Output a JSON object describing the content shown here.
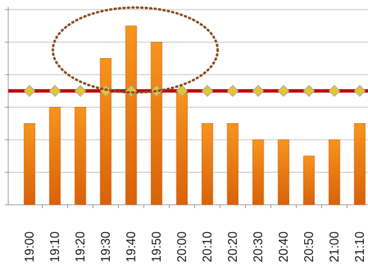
{
  "chart_data": {
    "type": "bar",
    "categories": [
      "19:00",
      "19:10",
      "19:20",
      "19:30",
      "19:40",
      "19:50",
      "20:00",
      "20:10",
      "20:20",
      "20:30",
      "20:40",
      "20:50",
      "21:00",
      "21:10"
    ],
    "series": [
      {
        "values": [
          5,
          6,
          6,
          9,
          11,
          10,
          7,
          5,
          5,
          4,
          4,
          3,
          4,
          5
        ]
      },
      {
        "type": "line",
        "values": [
          7,
          7,
          7,
          7,
          7,
          7,
          7,
          7,
          7,
          7,
          7,
          7,
          7,
          7
        ]
      }
    ],
    "ylim": [
      0,
      12
    ],
    "grid": true,
    "colors": {
      "bar": "#f07b12",
      "bar_dark": "#c85a08",
      "line": "#c00000",
      "marker": "#e8c32e",
      "marker_edge": "#8ca8c8",
      "annotation": "#8b4a1f",
      "grid": "#bdbdbd",
      "axis": "#8c8c8c"
    }
  }
}
